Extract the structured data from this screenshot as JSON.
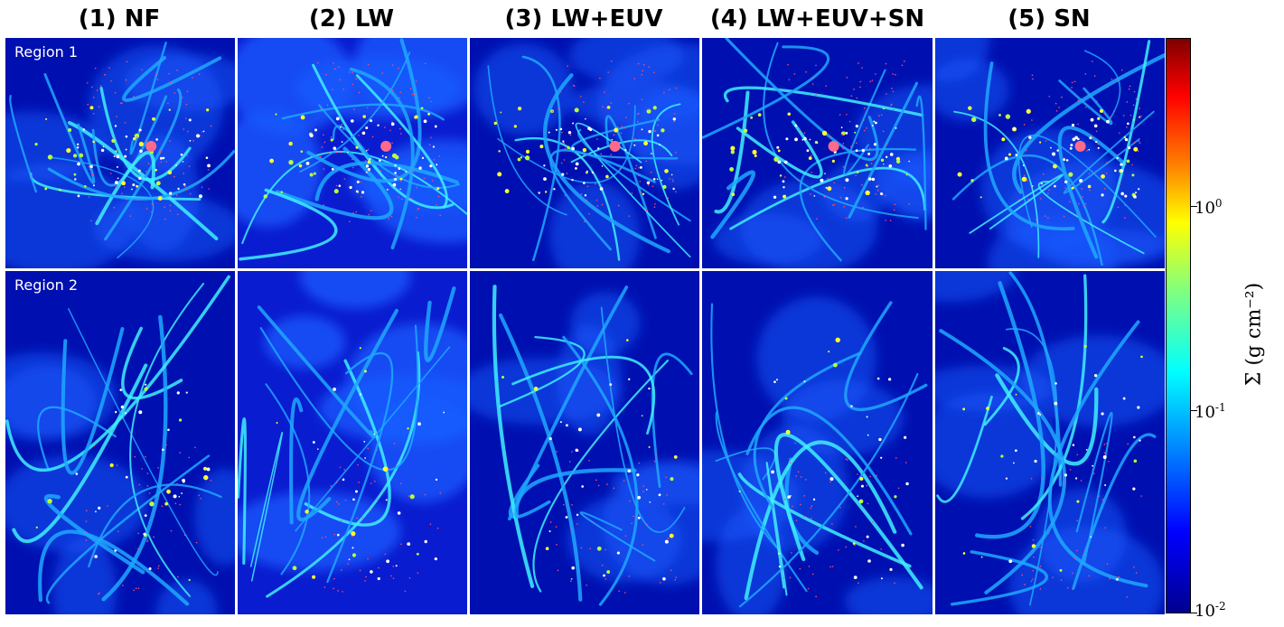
{
  "figure": {
    "columns": [
      "(1) NF",
      "(2) LW",
      "(3) LW+EUV",
      "(4) LW+EUV+SN",
      "(5) SN"
    ],
    "rows": [
      "Region 1",
      "Region 2"
    ],
    "colorbar": {
      "label": "Σ  (g cm⁻²)",
      "scale": "log",
      "range": [
        0.01,
        5
      ],
      "ticks": [
        {
          "base": "10",
          "exp": "0",
          "value": 1
        },
        {
          "base": "10",
          "exp": "-1",
          "value": 0.1
        },
        {
          "base": "10",
          "exp": "-2",
          "value": 0.01
        }
      ],
      "colors": [
        "#00008f",
        "#0000ff",
        "#0080ff",
        "#00ffff",
        "#80ff80",
        "#ffff00",
        "#ff8000",
        "#ff0000",
        "#800000"
      ]
    }
  }
}
